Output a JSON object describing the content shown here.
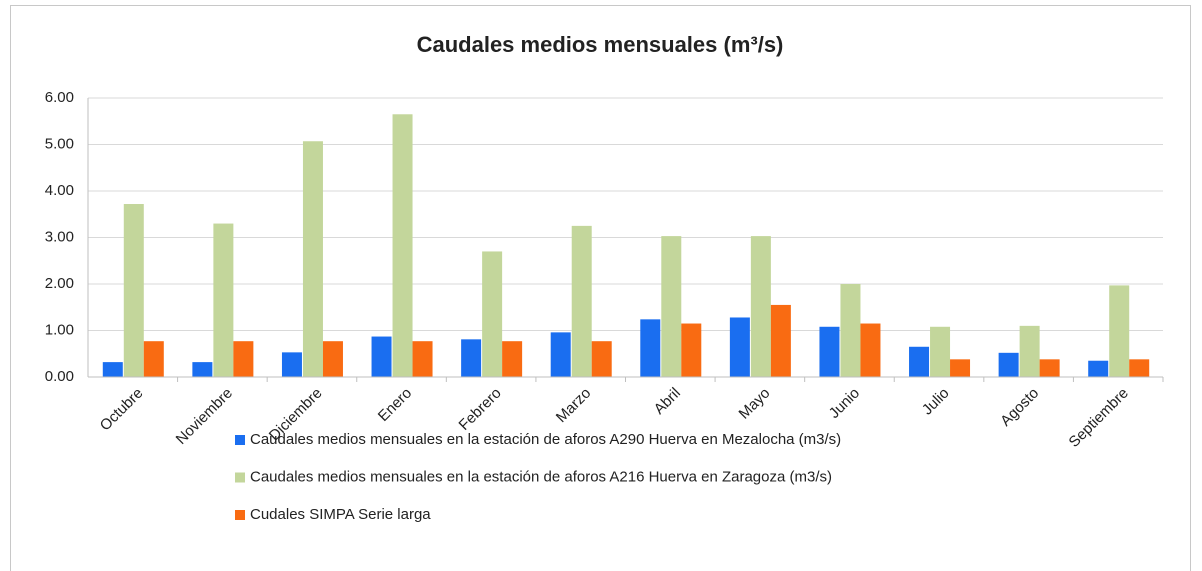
{
  "chart_data": {
    "type": "bar",
    "title": "Caudales medios mensuales (m³/s)",
    "categories": [
      "Octubre",
      "Noviembre",
      "Diciembre",
      "Enero",
      "Febrero",
      "Marzo",
      "Abril",
      "Mayo",
      "Junio",
      "Julio",
      "Agosto",
      "Septiembre"
    ],
    "series": [
      {
        "name": "Caudales medios mensuales en la estación de aforos A290 Huerva en Mezalocha (m3/s)",
        "color": "#1a6ef0",
        "values": [
          0.32,
          0.32,
          0.53,
          0.87,
          0.81,
          0.96,
          1.24,
          1.28,
          1.08,
          0.65,
          0.52,
          0.35
        ]
      },
      {
        "name": "Caudales medios mensuales en la estación de aforos A216 Huerva en Zaragoza (m3/s)",
        "color": "#c3d69b",
        "values": [
          3.72,
          3.3,
          5.07,
          5.65,
          2.7,
          3.25,
          3.03,
          3.03,
          2.0,
          1.08,
          1.1,
          1.97
        ]
      },
      {
        "name": "Cudales SIMPA Serie larga",
        "color": "#f96b12",
        "values": [
          0.77,
          0.77,
          0.77,
          0.77,
          0.77,
          0.77,
          1.15,
          1.55,
          1.15,
          0.38,
          0.38,
          0.38
        ]
      }
    ],
    "ylim": [
      0,
      6
    ],
    "yticks": [
      {
        "value": 0,
        "label": "0.00"
      },
      {
        "value": 1,
        "label": "1.00"
      },
      {
        "value": 2,
        "label": "2.00"
      },
      {
        "value": 3,
        "label": "3.00"
      },
      {
        "value": 4,
        "label": "4.00"
      },
      {
        "value": 5,
        "label": "5.00"
      },
      {
        "value": 6,
        "label": "6.00"
      }
    ],
    "grid": true
  }
}
